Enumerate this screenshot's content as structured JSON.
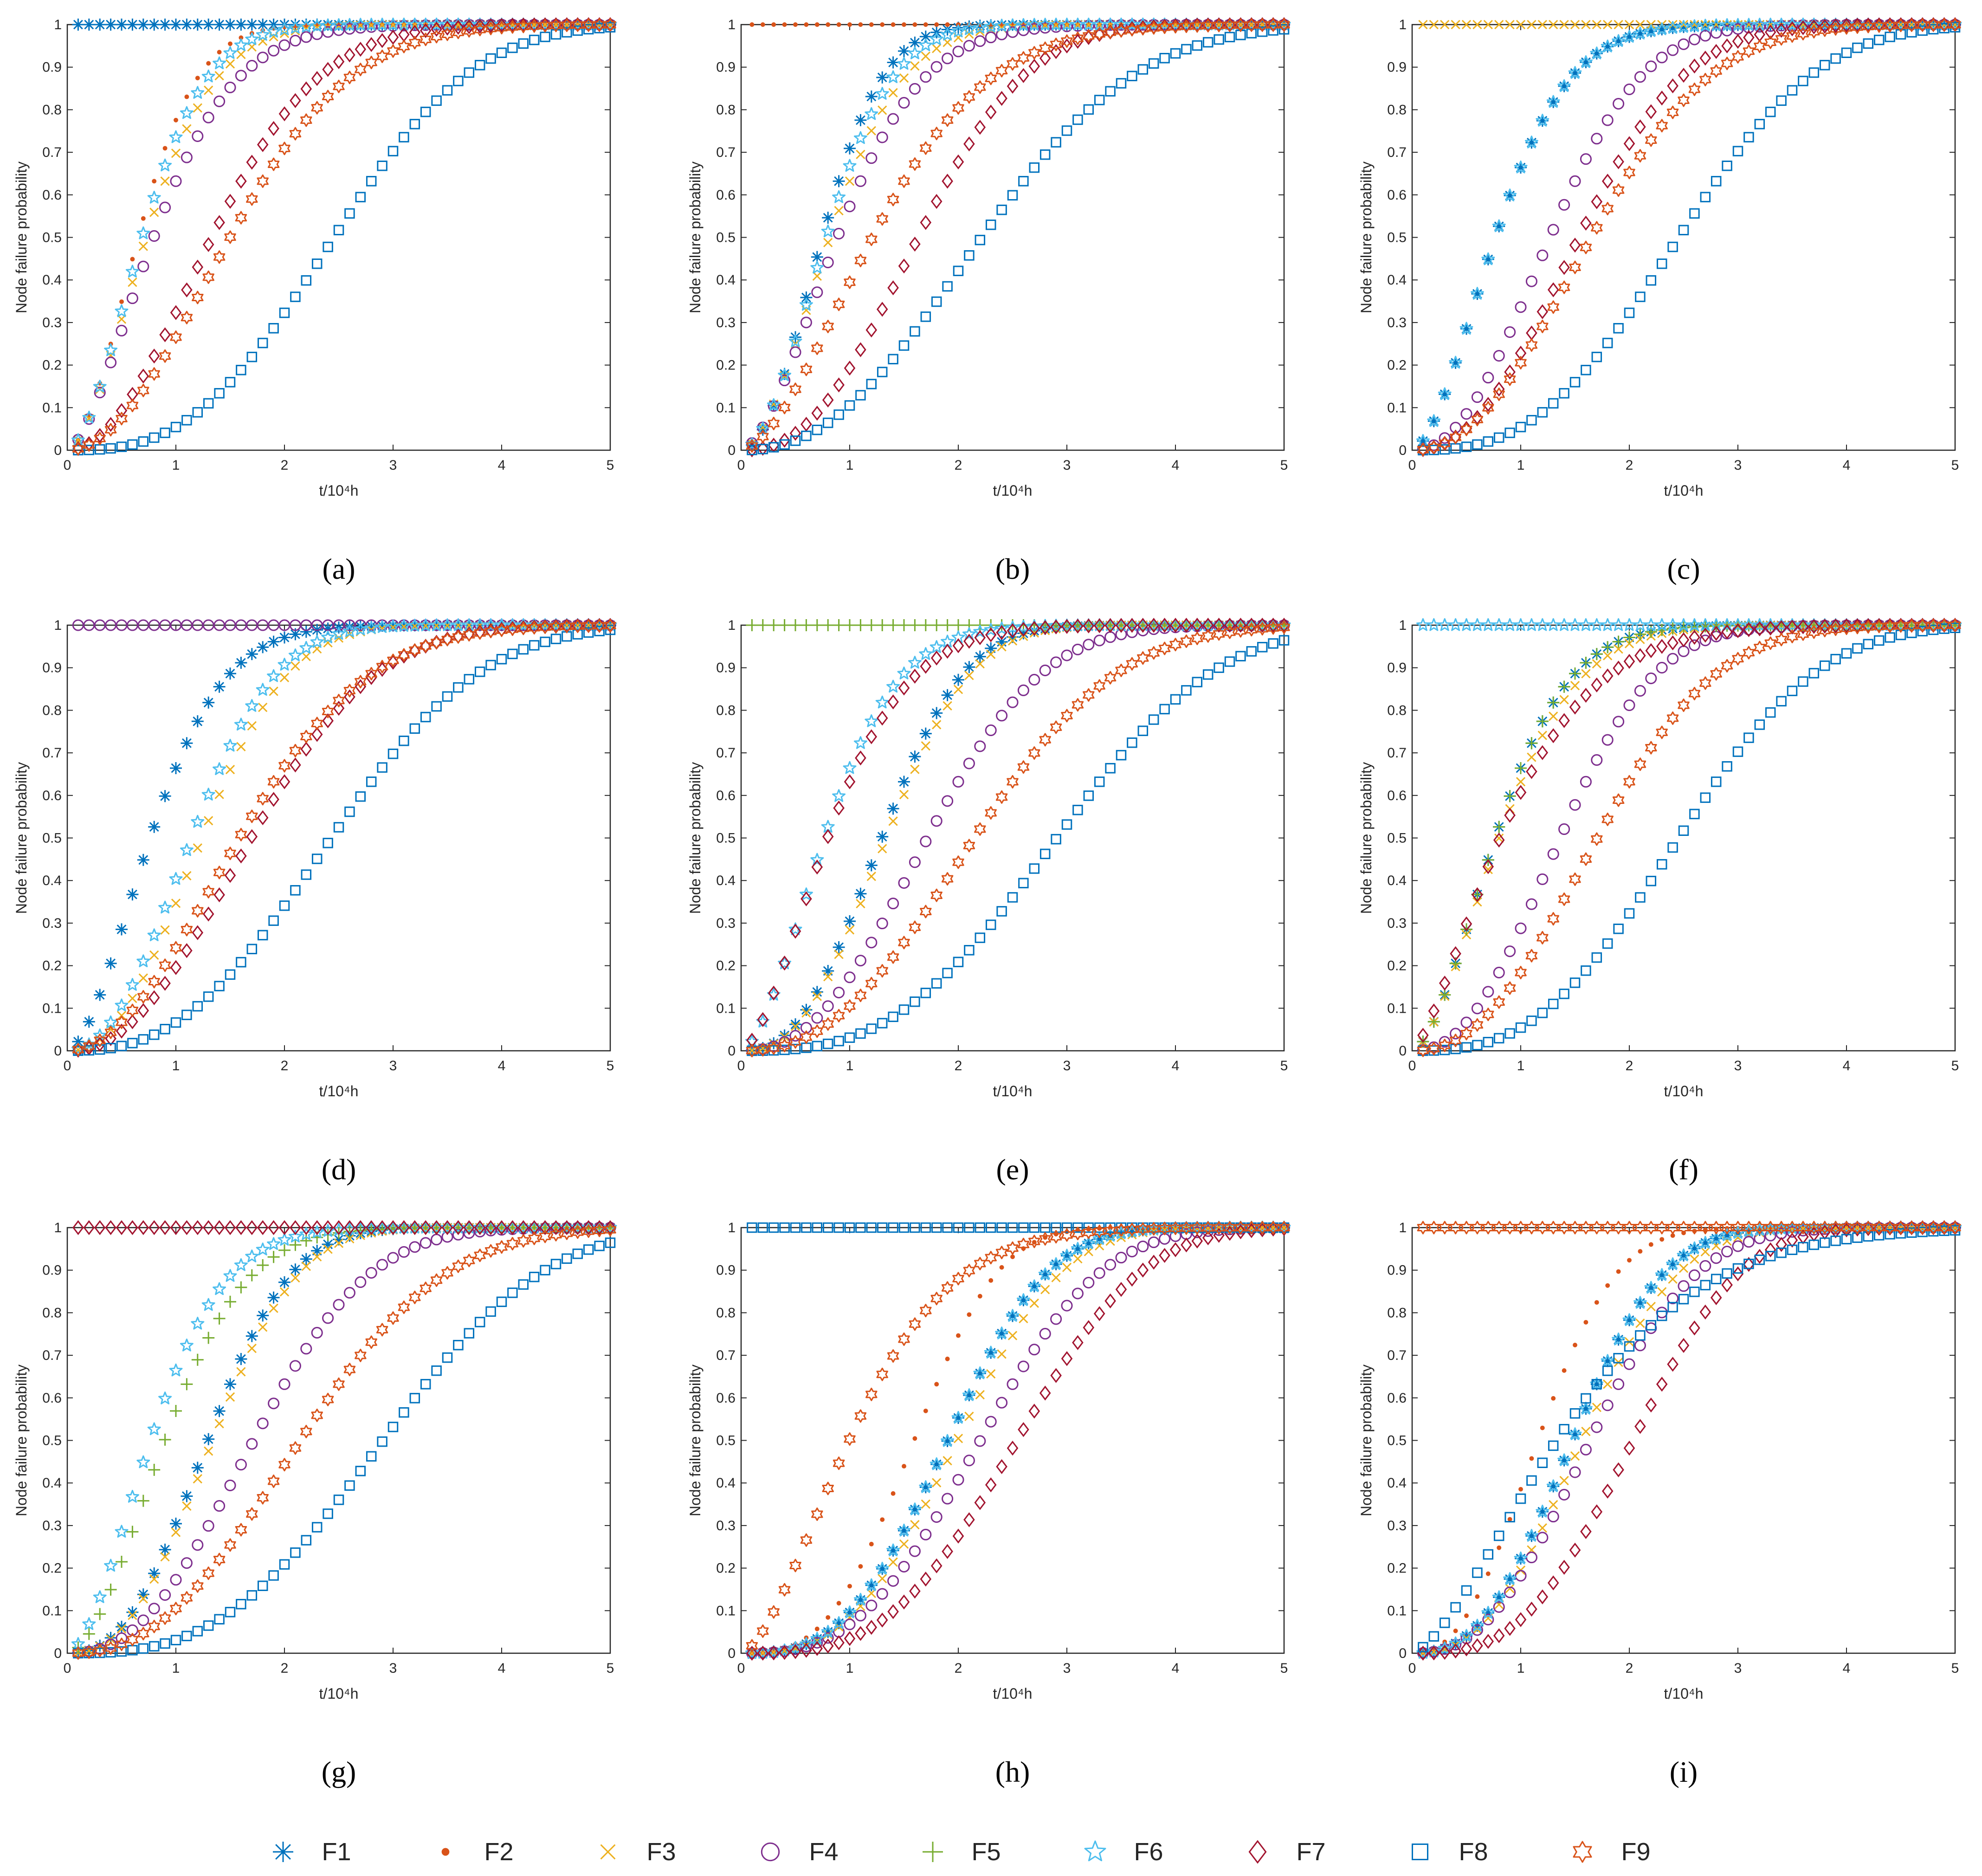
{
  "figure": {
    "legend": [
      {
        "name": "F1",
        "marker": "asterisk",
        "color": "#0072BD"
      },
      {
        "name": "F2",
        "marker": "dot",
        "color": "#D95319"
      },
      {
        "name": "F3",
        "marker": "x",
        "color": "#EDB120"
      },
      {
        "name": "F4",
        "marker": "circle",
        "color": "#7E2F8E"
      },
      {
        "name": "F5",
        "marker": "plus",
        "color": "#77AC30"
      },
      {
        "name": "F6",
        "marker": "star",
        "color": "#4DBEEE"
      },
      {
        "name": "F7",
        "marker": "diamond",
        "color": "#A2142F"
      },
      {
        "name": "F8",
        "marker": "square",
        "color": "#0072BD"
      },
      {
        "name": "F9",
        "marker": "hexagram",
        "color": "#D95319"
      }
    ]
  },
  "chart_data": [
    {
      "type": "scatter",
      "caption": "(a)",
      "xlabel": "t/10⁴h",
      "ylabel": "Node failure probability",
      "xlim": [
        0,
        5
      ],
      "ylim": [
        0,
        1
      ],
      "xticks": [
        "0",
        "1",
        "2",
        "3",
        "4",
        "5"
      ],
      "yticks": [
        "0",
        "0.1",
        "0.2",
        "0.3",
        "0.4",
        "0.5",
        "0.6",
        "0.7",
        "0.8",
        "0.9",
        "1"
      ],
      "x_sample": {
        "start": 0.1,
        "step": 0.1,
        "count": 50
      },
      "series": [
        {
          "name": "F1",
          "kind": "const",
          "value": 1
        },
        {
          "name": "F2",
          "kind": "weibull",
          "eta": 0.8,
          "beta": 1.8
        },
        {
          "name": "F3",
          "kind": "weibull",
          "eta": 0.9,
          "beta": 1.7
        },
        {
          "name": "F4",
          "kind": "weibull",
          "eta": 1.0,
          "beta": 1.6
        },
        {
          "name": "F6",
          "kind": "weibull",
          "eta": 0.85,
          "beta": 1.75
        },
        {
          "name": "F7",
          "kind": "weibull",
          "eta": 1.6,
          "beta": 2.0
        },
        {
          "name": "F8",
          "kind": "weibull",
          "eta": 2.8,
          "beta": 2.8
        },
        {
          "name": "F9",
          "kind": "weibull",
          "eta": 1.8,
          "beta": 2.0
        }
      ]
    },
    {
      "type": "scatter",
      "caption": "(b)",
      "xlabel": "t/10⁴h",
      "ylabel": "Node failure probability",
      "xlim": [
        0,
        5
      ],
      "ylim": [
        0,
        1
      ],
      "xticks": [
        "0",
        "1",
        "2",
        "3",
        "4",
        "5"
      ],
      "yticks": [
        "0",
        "0.1",
        "0.2",
        "0.3",
        "0.4",
        "0.5",
        "0.6",
        "0.7",
        "0.8",
        "0.9",
        "1"
      ],
      "x_sample": {
        "start": 0.1,
        "step": 0.1,
        "count": 50
      },
      "series": [
        {
          "name": "F1",
          "kind": "weibull",
          "eta": 0.9,
          "beta": 2.0
        },
        {
          "name": "F2",
          "kind": "const",
          "value": 1
        },
        {
          "name": "F3",
          "kind": "weibull",
          "eta": 1.0,
          "beta": 1.8
        },
        {
          "name": "F4",
          "kind": "weibull",
          "eta": 1.1,
          "beta": 1.7
        },
        {
          "name": "F6",
          "kind": "weibull",
          "eta": 0.95,
          "beta": 1.9
        },
        {
          "name": "F7",
          "kind": "weibull",
          "eta": 1.9,
          "beta": 2.4
        },
        {
          "name": "F8",
          "kind": "weibull",
          "eta": 2.6,
          "beta": 2.3
        },
        {
          "name": "F9",
          "kind": "weibull",
          "eta": 1.5,
          "beta": 1.7
        }
      ]
    },
    {
      "type": "scatter",
      "caption": "(c)",
      "xlabel": "t/10⁴h",
      "ylabel": "Node failure probability",
      "xlim": [
        0,
        5
      ],
      "ylim": [
        0,
        1
      ],
      "xticks": [
        "0",
        "1",
        "2",
        "3",
        "4",
        "5"
      ],
      "yticks": [
        "0",
        "0.1",
        "0.2",
        "0.3",
        "0.4",
        "0.5",
        "0.6",
        "0.7",
        "0.8",
        "0.9",
        "1"
      ],
      "x_sample": {
        "start": 0.1,
        "step": 0.1,
        "count": 50
      },
      "series": [
        {
          "name": "F1",
          "kind": "weibull",
          "eta": 0.95,
          "beta": 1.7
        },
        {
          "name": "F3",
          "kind": "const",
          "value": 1
        },
        {
          "name": "F4",
          "kind": "weibull",
          "eta": 1.5,
          "beta": 2.2
        },
        {
          "name": "F6",
          "kind": "weibull",
          "eta": 0.95,
          "beta": 1.7
        },
        {
          "name": "F7",
          "kind": "weibull",
          "eta": 1.8,
          "beta": 2.3
        },
        {
          "name": "F8",
          "kind": "weibull",
          "eta": 2.8,
          "beta": 2.8
        },
        {
          "name": "F9",
          "kind": "weibull",
          "eta": 1.95,
          "beta": 2.2
        }
      ]
    },
    {
      "type": "scatter",
      "caption": "(d)",
      "xlabel": "t/10⁴h",
      "ylabel": "Node failure probability",
      "xlim": [
        0,
        5
      ],
      "ylim": [
        0,
        1
      ],
      "xticks": [
        "0",
        "1",
        "2",
        "3",
        "4",
        "5"
      ],
      "yticks": [
        "0",
        "0.1",
        "0.2",
        "0.3",
        "0.4",
        "0.5",
        "0.6",
        "0.7",
        "0.8",
        "0.9",
        "1"
      ],
      "x_sample": {
        "start": 0.1,
        "step": 0.1,
        "count": 50
      },
      "series": [
        {
          "name": "F1",
          "kind": "weibull",
          "eta": 0.95,
          "beta": 1.7
        },
        {
          "name": "F3",
          "kind": "weibull",
          "eta": 1.45,
          "beta": 2.3
        },
        {
          "name": "F4",
          "kind": "const",
          "value": 1
        },
        {
          "name": "F6",
          "kind": "weibull",
          "eta": 1.35,
          "beta": 2.2
        },
        {
          "name": "F7",
          "kind": "weibull",
          "eta": 2.0,
          "beta": 2.2
        },
        {
          "name": "F8",
          "kind": "weibull",
          "eta": 2.8,
          "beta": 2.6
        },
        {
          "name": "F9",
          "kind": "weibull",
          "eta": 1.9,
          "beta": 2.0
        }
      ]
    },
    {
      "type": "scatter",
      "caption": "(e)",
      "xlabel": "t/10⁴h",
      "ylabel": "Node failure probability",
      "xlim": [
        0,
        5
      ],
      "ylim": [
        0,
        1
      ],
      "xticks": [
        "0",
        "1",
        "2",
        "3",
        "4",
        "5"
      ],
      "yticks": [
        "0",
        "0.1",
        "0.2",
        "0.3",
        "0.4",
        "0.5",
        "0.6",
        "0.7",
        "0.8",
        "0.9",
        "1"
      ],
      "x_sample": {
        "start": 0.1,
        "step": 0.1,
        "count": 50
      },
      "series": [
        {
          "name": "F1",
          "kind": "weibull",
          "eta": 1.5,
          "beta": 2.5
        },
        {
          "name": "F3",
          "kind": "weibull",
          "eta": 1.55,
          "beta": 2.5
        },
        {
          "name": "F4",
          "kind": "weibull",
          "eta": 2.0,
          "beta": 2.4
        },
        {
          "name": "F5",
          "kind": "const",
          "value": 1
        },
        {
          "name": "F6",
          "kind": "weibull",
          "eta": 0.95,
          "beta": 1.7
        },
        {
          "name": "F7",
          "kind": "weibull",
          "eta": 1.0,
          "beta": 1.6
        },
        {
          "name": "F8",
          "kind": "weibull",
          "eta": 3.3,
          "beta": 2.9
        },
        {
          "name": "F9",
          "kind": "weibull",
          "eta": 2.5,
          "beta": 2.4
        }
      ]
    },
    {
      "type": "scatter",
      "caption": "(f)",
      "xlabel": "t/10⁴h",
      "ylabel": "Node failure probability",
      "xlim": [
        0,
        5
      ],
      "ylim": [
        0,
        1
      ],
      "xticks": [
        "0",
        "1",
        "2",
        "3",
        "4",
        "5"
      ],
      "yticks": [
        "0",
        "0.1",
        "0.2",
        "0.3",
        "0.4",
        "0.5",
        "0.6",
        "0.7",
        "0.8",
        "0.9",
        "1"
      ],
      "x_sample": {
        "start": 0.1,
        "step": 0.1,
        "count": 50
      },
      "series": [
        {
          "name": "F1",
          "kind": "weibull",
          "eta": 0.95,
          "beta": 1.7
        },
        {
          "name": "F3",
          "kind": "weibull",
          "eta": 1.0,
          "beta": 1.65
        },
        {
          "name": "F4",
          "kind": "weibull",
          "eta": 1.6,
          "beta": 2.3
        },
        {
          "name": "F5",
          "kind": "weibull",
          "eta": 0.95,
          "beta": 1.7
        },
        {
          "name": "F6",
          "kind": "const",
          "value": 1
        },
        {
          "name": "F7",
          "kind": "weibull",
          "eta": 1.05,
          "beta": 1.4
        },
        {
          "name": "F8",
          "kind": "weibull",
          "eta": 2.8,
          "beta": 2.8
        },
        {
          "name": "F9",
          "kind": "weibull",
          "eta": 2.0,
          "beta": 2.3
        }
      ]
    },
    {
      "type": "scatter",
      "caption": "(g)",
      "xlabel": "t/10⁴h",
      "ylabel": "Node failure probability",
      "xlim": [
        0,
        5
      ],
      "ylim": [
        0,
        1
      ],
      "xticks": [
        "0",
        "1",
        "2",
        "3",
        "4",
        "5"
      ],
      "yticks": [
        "0",
        "0.1",
        "0.2",
        "0.3",
        "0.4",
        "0.5",
        "0.6",
        "0.7",
        "0.8",
        "0.9",
        "1"
      ],
      "x_sample": {
        "start": 0.1,
        "step": 0.1,
        "count": 50
      },
      "series": [
        {
          "name": "F1",
          "kind": "weibull",
          "eta": 1.5,
          "beta": 2.5
        },
        {
          "name": "F3",
          "kind": "weibull",
          "eta": 1.55,
          "beta": 2.5
        },
        {
          "name": "F4",
          "kind": "weibull",
          "eta": 2.0,
          "beta": 2.4
        },
        {
          "name": "F5",
          "kind": "weibull",
          "eta": 1.1,
          "beta": 1.8
        },
        {
          "name": "F6",
          "kind": "weibull",
          "eta": 0.95,
          "beta": 1.7
        },
        {
          "name": "F7",
          "kind": "const",
          "value": 1
        },
        {
          "name": "F8",
          "kind": "weibull",
          "eta": 3.3,
          "beta": 2.9
        },
        {
          "name": "F9",
          "kind": "weibull",
          "eta": 2.5,
          "beta": 2.4
        }
      ]
    },
    {
      "type": "scatter",
      "caption": "(h)",
      "xlabel": "t/10⁴h",
      "ylabel": "Node failure probability",
      "xlim": [
        0,
        5
      ],
      "ylim": [
        0,
        1
      ],
      "xticks": [
        "0",
        "1",
        "2",
        "3",
        "4",
        "5"
      ],
      "yticks": [
        "0",
        "0.1",
        "0.2",
        "0.3",
        "0.4",
        "0.5",
        "0.6",
        "0.7",
        "0.8",
        "0.9",
        "1"
      ],
      "x_sample": {
        "start": 0.1,
        "step": 0.1,
        "count": 50
      },
      "series": [
        {
          "name": "F1",
          "kind": "weibull",
          "eta": 2.15,
          "beta": 3.0
        },
        {
          "name": "F2",
          "kind": "weibull",
          "eta": 1.8,
          "beta": 3.0
        },
        {
          "name": "F3",
          "kind": "weibull",
          "eta": 2.25,
          "beta": 3.0
        },
        {
          "name": "F4",
          "kind": "weibull",
          "eta": 2.5,
          "beta": 2.9
        },
        {
          "name": "F6",
          "kind": "weibull",
          "eta": 2.15,
          "beta": 3.0
        },
        {
          "name": "F7",
          "kind": "weibull",
          "eta": 2.85,
          "beta": 3.2
        },
        {
          "name": "F8",
          "kind": "const",
          "value": 1
        },
        {
          "name": "F9",
          "kind": "weibull",
          "eta": 1.25,
          "beta": 1.6
        }
      ]
    },
    {
      "type": "scatter",
      "caption": "(i)",
      "xlabel": "t/10⁴h",
      "ylabel": "Node failure probability",
      "xlim": [
        0,
        5
      ],
      "ylim": [
        0,
        1
      ],
      "xticks": [
        "0",
        "1",
        "2",
        "3",
        "4",
        "5"
      ],
      "yticks": [
        "0",
        "0.1",
        "0.2",
        "0.3",
        "0.4",
        "0.5",
        "0.6",
        "0.7",
        "0.8",
        "0.9",
        "1"
      ],
      "x_sample": {
        "start": 0.1,
        "step": 0.1,
        "count": 50
      },
      "series": [
        {
          "name": "F1",
          "kind": "weibull",
          "eta": 1.7,
          "beta": 2.6
        },
        {
          "name": "F2",
          "kind": "weibull",
          "eta": 1.35,
          "beta": 2.4
        },
        {
          "name": "F3",
          "kind": "weibull",
          "eta": 1.8,
          "beta": 2.6
        },
        {
          "name": "F4",
          "kind": "weibull",
          "eta": 1.9,
          "beta": 2.5
        },
        {
          "name": "F6",
          "kind": "weibull",
          "eta": 1.7,
          "beta": 2.6
        },
        {
          "name": "F7",
          "kind": "weibull",
          "eta": 2.3,
          "beta": 3.0
        },
        {
          "name": "F8",
          "kind": "weibull",
          "eta": 1.7,
          "beta": 1.5
        },
        {
          "name": "F9",
          "kind": "const",
          "value": 1
        }
      ]
    }
  ]
}
